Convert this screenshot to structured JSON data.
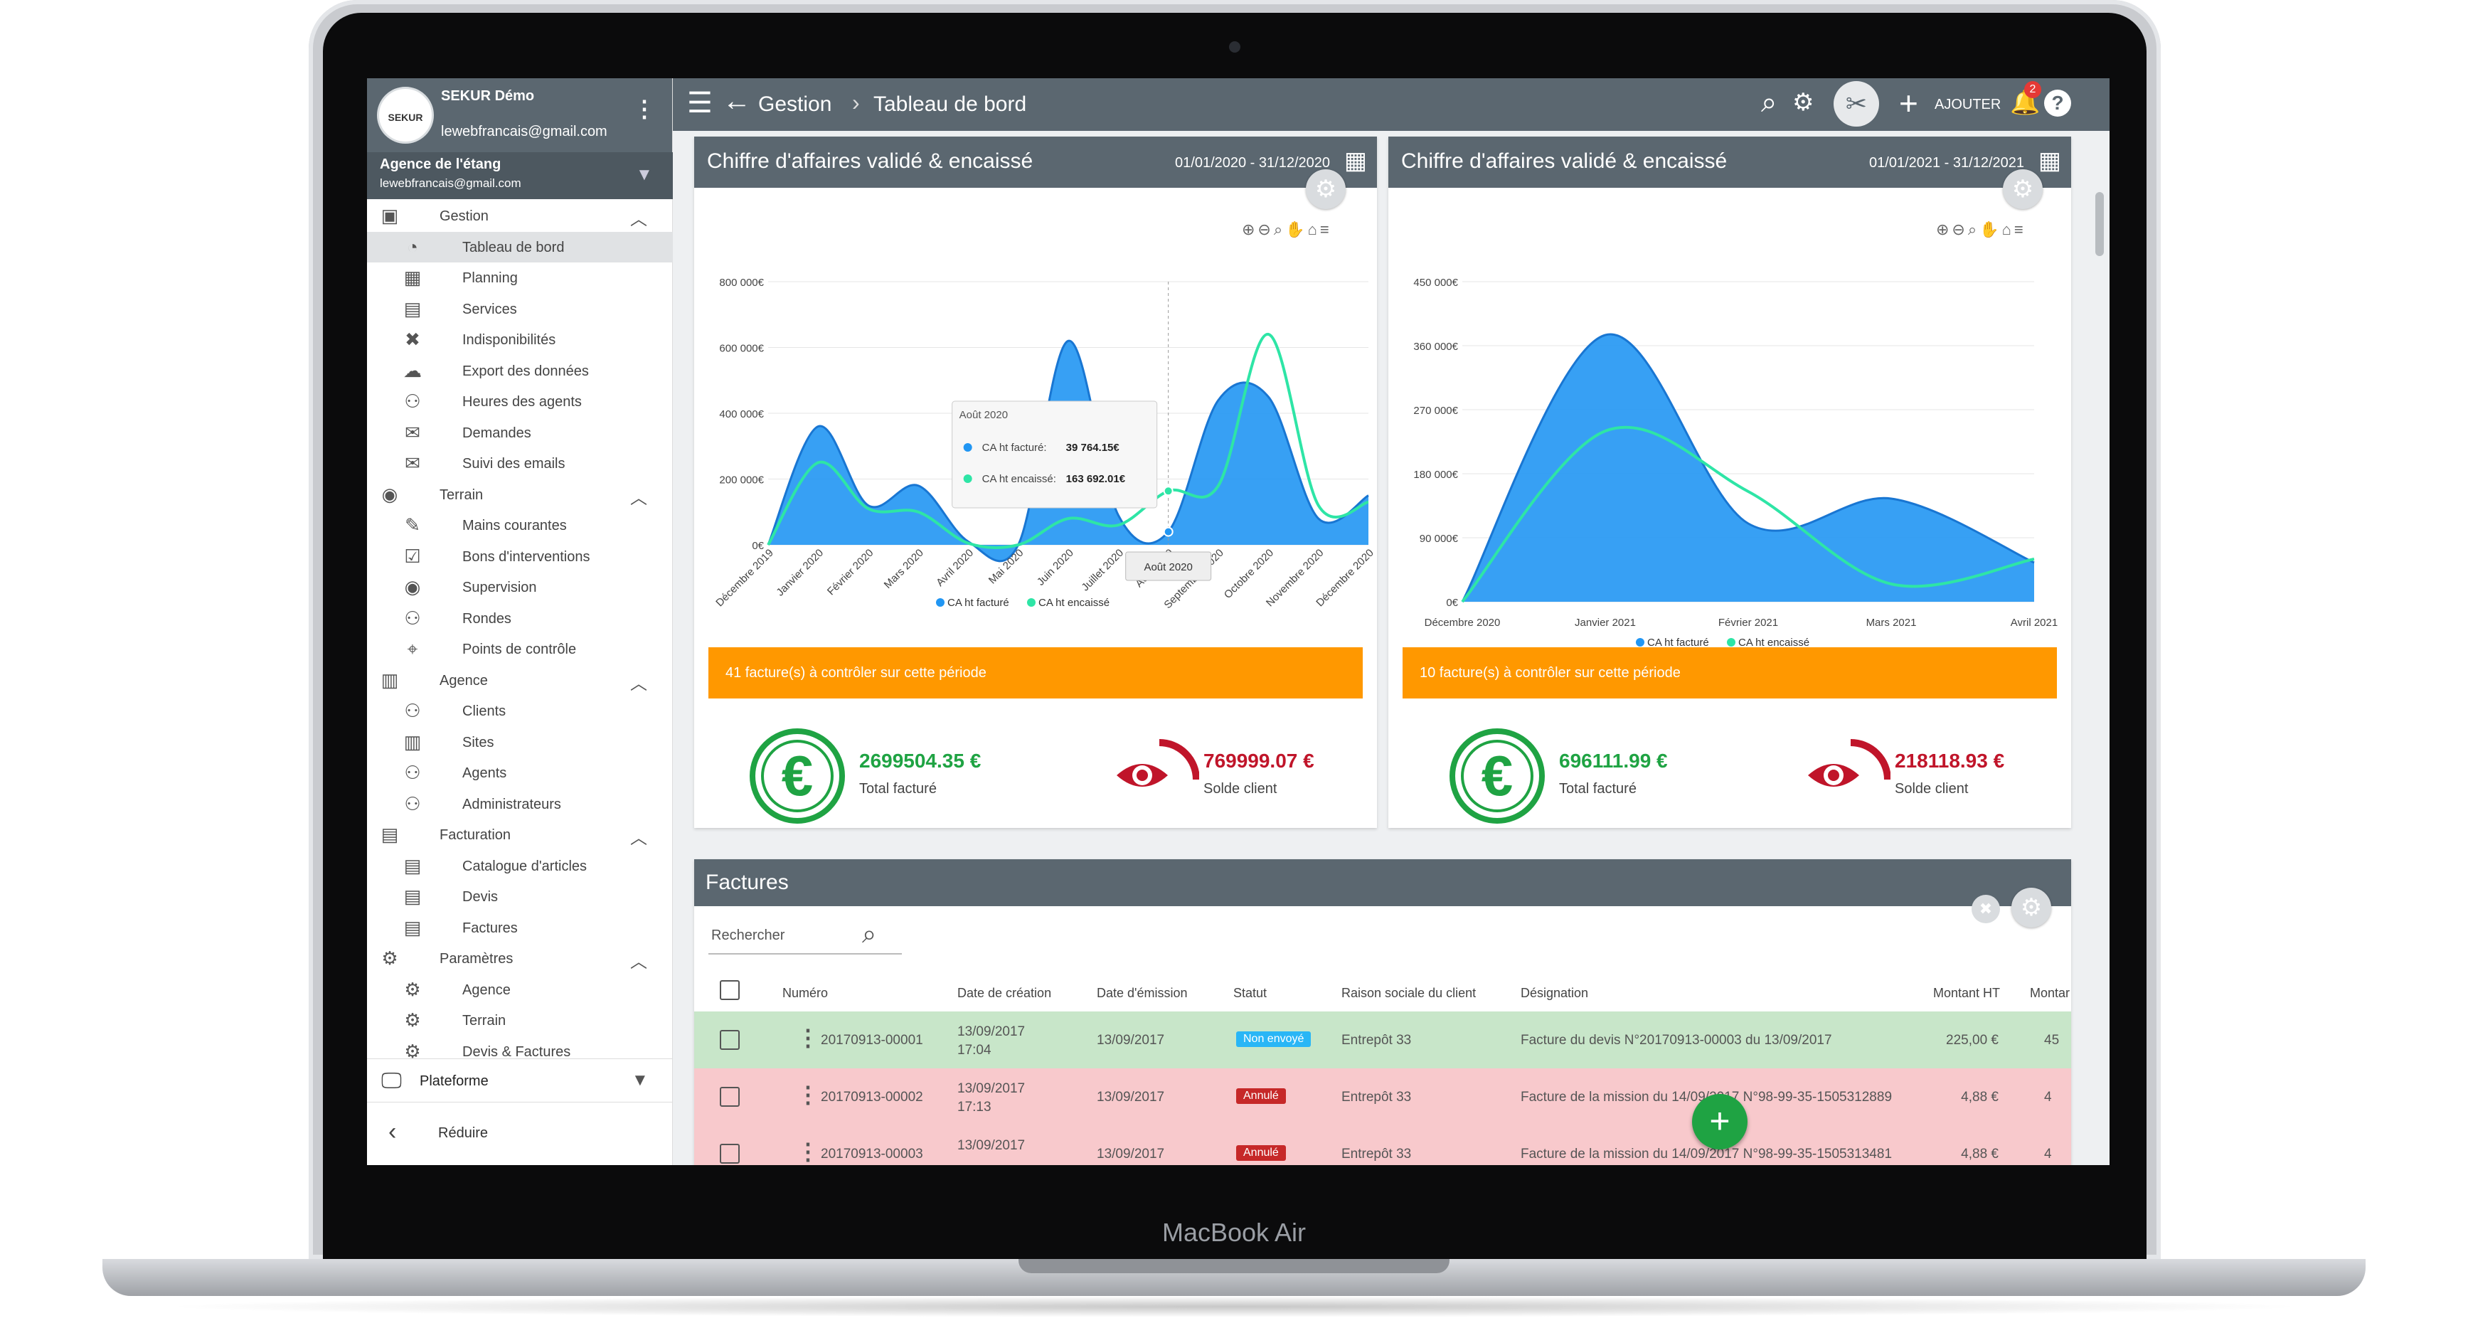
{
  "device": {
    "label": "MacBook Air"
  },
  "profile": {
    "name": "SEKUR Démo",
    "avatar_text": "SEKUR",
    "email": "lewebfrancais@gmail.com"
  },
  "agency": {
    "name": "Agence de l'étang",
    "email": "lewebfrancais@gmail.com"
  },
  "sidebar": {
    "groups": [
      {
        "label": "Gestion",
        "items": [
          "Tableau de bord",
          "Planning",
          "Services",
          "Indisponibilités",
          "Export des données",
          "Heures des agents",
          "Demandes",
          "Suivi des emails"
        ]
      },
      {
        "label": "Terrain",
        "items": [
          "Mains courantes",
          "Bons d'interventions",
          "Supervision",
          "Rondes",
          "Points de contrôle"
        ]
      },
      {
        "label": "Agence",
        "items": [
          "Clients",
          "Sites",
          "Agents",
          "Administrateurs"
        ]
      },
      {
        "label": "Facturation",
        "items": [
          "Catalogue d'articles",
          "Devis",
          "Factures"
        ]
      },
      {
        "label": "Paramètres",
        "items": [
          "Agence",
          "Terrain",
          "Devis & Factures"
        ]
      }
    ],
    "platform_label": "Plateforme",
    "reduce_label": "Réduire"
  },
  "topbar": {
    "crumb_parent": "Gestion",
    "crumb_current": "Tableau de bord",
    "add_label": "AJOUTER",
    "notifications": "2"
  },
  "panels": [
    {
      "title": "Chiffre d'affaires validé & encaissé",
      "dates": "01/01/2020 - 31/12/2020",
      "alert": "41 facture(s) à contrôler sur cette période",
      "total_value": "2699504.35 €",
      "total_label": "Total facturé",
      "solde_value": "769999.07 €",
      "solde_label": "Solde client"
    },
    {
      "title": "Chiffre d'affaires validé & encaissé",
      "dates": "01/01/2021 - 31/12/2021",
      "alert": "10 facture(s) à contrôler sur cette période",
      "total_value": "696111.99 €",
      "total_label": "Total facturé",
      "solde_value": "218118.93 €",
      "solde_label": "Solde client"
    }
  ],
  "chart_data": [
    {
      "type": "area",
      "categories": [
        "Décembre 2019",
        "Janvier 2020",
        "Février 2020",
        "Mars 2020",
        "Avril 2020",
        "Mai 2020",
        "Juin 2020",
        "Juillet 2020",
        "Août 2020",
        "Septembre 2020",
        "Octobre 2020",
        "Novembre 2020",
        "Décembre 2020"
      ],
      "ylim": [
        0,
        800000
      ],
      "yticks": [
        "0€",
        "200 000€",
        "400 000€",
        "600 000€",
        "800 000€"
      ],
      "series": [
        {
          "name": "CA ht facturé",
          "color": "#2196f3",
          "values": [
            0,
            360000,
            120000,
            180000,
            10000,
            0,
            620000,
            90000,
            39764.15,
            440000,
            450000,
            80000,
            150000
          ]
        },
        {
          "name": "CA ht encaissé",
          "color": "#2ee5a6",
          "values": [
            0,
            250000,
            110000,
            100000,
            5000,
            0,
            80000,
            60000,
            163692.01,
            180000,
            640000,
            120000,
            130000
          ]
        }
      ],
      "tooltip": {
        "title": "Août 2020",
        "rows": [
          {
            "label": "CA ht facturé:",
            "value": "39 764.15€"
          },
          {
            "label": "CA ht encaissé:",
            "value": "163 692.01€"
          }
        ],
        "x_label": "Août 2020"
      }
    },
    {
      "type": "area",
      "categories": [
        "Décembre 2020",
        "Janvier 2021",
        "Février 2021",
        "Mars 2021",
        "Avril 2021"
      ],
      "ylim": [
        0,
        450000
      ],
      "yticks": [
        "0€",
        "90 000€",
        "180 000€",
        "270 000€",
        "360 000€",
        "450 000€"
      ],
      "series": [
        {
          "name": "CA ht facturé",
          "color": "#2196f3",
          "values": [
            0,
            375000,
            110000,
            145000,
            55000
          ]
        },
        {
          "name": "CA ht encaissé",
          "color": "#2ee5a6",
          "values": [
            0,
            240000,
            155000,
            25000,
            60000
          ]
        }
      ]
    }
  ],
  "invoices": {
    "title": "Factures",
    "search_placeholder": "Rechercher",
    "columns": [
      "Numéro",
      "Date de création",
      "Date d'émission",
      "Statut",
      "Raison sociale du client",
      "Désignation",
      "Montant HT",
      "Montar"
    ],
    "rows": [
      {
        "numero": "20170913-00001",
        "created_date": "13/09/2017",
        "created_time": "17:04",
        "emission": "13/09/2017",
        "status": "Non envoyé",
        "client": "Entrepôt 33",
        "designation": "Facture du devis N°20170913-00003 du 13/09/2017",
        "montant": "225,00 €",
        "montant2": "45",
        "color": "#c8e6c9",
        "status_color": "#29b6f6"
      },
      {
        "numero": "20170913-00002",
        "created_date": "13/09/2017",
        "created_time": "17:13",
        "emission": "13/09/2017",
        "status": "Annulé",
        "client": "Entrepôt 33",
        "designation": "Facture de la mission du 14/09/2017 N°98-99-35-1505312889",
        "montant": "4,88 €",
        "montant2": "4",
        "color": "#f8c9cc",
        "status_color": "#c62828"
      },
      {
        "numero": "20170913-00003",
        "created_date": "13/09/2017",
        "created_time": "",
        "emission": "13/09/2017",
        "status": "Annulé",
        "client": "Entrepôt 33",
        "designation": "Facture de la mission du 14/09/2017 N°98-99-35-1505313481",
        "montant": "4,88 €",
        "montant2": "4",
        "color": "#f8c9cc",
        "status_color": "#c62828"
      }
    ]
  },
  "icons": {
    "menu": "hamburger-icon",
    "back": "arrow-left-icon",
    "search": "search-icon",
    "settings": "gears-icon",
    "tools": "tools-icon",
    "add": "plus-icon",
    "notifications": "bell-icon",
    "help": "help-icon",
    "calendar": "calendar-icon",
    "euro": "euro-icon",
    "eye": "eye-icon"
  }
}
